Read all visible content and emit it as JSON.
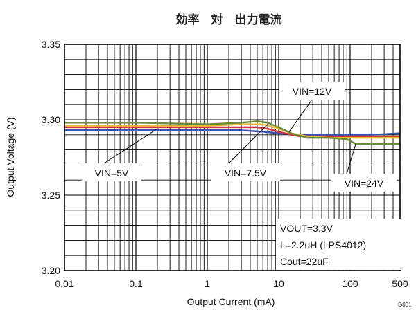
{
  "chart_data": {
    "type": "line",
    "title": "効率　対　出力電流",
    "xlabel": "Output Current (mA)",
    "ylabel": "Output Voltage (V)",
    "x_scale": "log",
    "xlim": [
      0.01,
      500
    ],
    "ylim": [
      3.2,
      3.35
    ],
    "x_ticks": [
      {
        "value": 0.01,
        "label": "0.01"
      },
      {
        "value": 0.1,
        "label": "0.1"
      },
      {
        "value": 1,
        "label": "1"
      },
      {
        "value": 10,
        "label": "10"
      },
      {
        "value": 100,
        "label": "100"
      },
      {
        "value": 500,
        "label": "500"
      }
    ],
    "y_ticks": [
      {
        "value": 3.2,
        "label": "3.20"
      },
      {
        "value": 3.25,
        "label": "3.25"
      },
      {
        "value": 3.3,
        "label": "3.30"
      },
      {
        "value": 3.35,
        "label": "3.35"
      }
    ],
    "grid": true,
    "series": [
      {
        "name": "VIN=5V",
        "color": "#3a4fb3",
        "x": [
          0.01,
          0.1,
          1,
          3,
          6,
          10,
          20,
          50,
          100,
          200,
          500
        ],
        "y": [
          3.293,
          3.293,
          3.293,
          3.293,
          3.292,
          3.291,
          3.29,
          3.29,
          3.29,
          3.29,
          3.291
        ]
      },
      {
        "name": "VIN=7.5V",
        "color": "#d0343a",
        "x": [
          0.01,
          0.1,
          1,
          3,
          5,
          7,
          10,
          15,
          20,
          50,
          100,
          200,
          500
        ],
        "y": [
          3.295,
          3.295,
          3.295,
          3.295,
          3.295,
          3.294,
          3.292,
          3.29,
          3.289,
          3.289,
          3.289,
          3.289,
          3.289
        ]
      },
      {
        "name": "VIN=12V",
        "color": "#e8b83a",
        "x": [
          0.01,
          0.1,
          1,
          3,
          6,
          10,
          15,
          25,
          50,
          100,
          200,
          500
        ],
        "y": [
          3.296,
          3.296,
          3.296,
          3.297,
          3.297,
          3.294,
          3.291,
          3.289,
          3.288,
          3.288,
          3.288,
          3.288
        ]
      },
      {
        "name": "VIN=24V",
        "color": "#6b8a3a",
        "x": [
          0.01,
          0.1,
          1,
          3,
          5,
          7,
          10,
          15,
          25,
          50,
          90,
          120,
          200,
          500
        ],
        "y": [
          3.298,
          3.298,
          3.297,
          3.298,
          3.299,
          3.298,
          3.295,
          3.291,
          3.288,
          3.288,
          3.287,
          3.284,
          3.284,
          3.284
        ]
      }
    ],
    "annotations": [
      {
        "text": "VIN=12V",
        "point": [
          14,
          3.292
        ]
      },
      {
        "text": "VIN=5V",
        "point": [
          0.2,
          3.294
        ]
      },
      {
        "text": "VIN=7.5V",
        "point": [
          7,
          3.297
        ]
      },
      {
        "text": "VIN=24V",
        "point": [
          120,
          3.284
        ]
      }
    ],
    "conditions": [
      "VOUT=3.3V",
      "L=2.2uH (LPS4012)",
      "Cout=22uF"
    ],
    "figure_id": "G001"
  }
}
